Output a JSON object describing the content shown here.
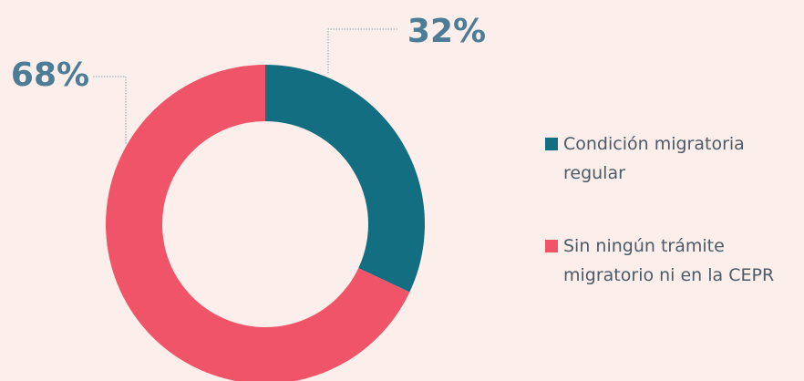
{
  "chart_data": {
    "type": "pie",
    "donut": true,
    "categories": [
      "Condición migratoria regular",
      "Sin ningún trámite migratorio ni en la CEPR"
    ],
    "values": [
      32,
      68
    ],
    "value_labels": [
      "32%",
      "68%"
    ],
    "colors": [
      "#136e82",
      "#f05468"
    ]
  }
}
